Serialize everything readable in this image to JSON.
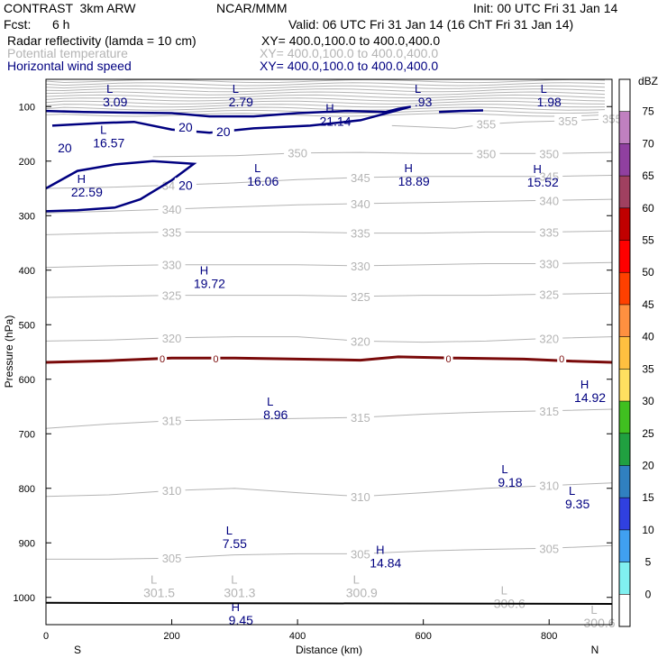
{
  "header": {
    "model": "CONTRAST  3km ARW",
    "org": "NCAR/MMM",
    "init": "Init: 00 UTC Fri 31 Jan 14",
    "fcst_label": "Fcst:",
    "fcst_value": "6 h",
    "valid": "Valid: 06 UTC Fri 31 Jan 14 (16 ChT Fri 31 Jan 14)",
    "fields": [
      {
        "name": "Radar reflectivity (lamda = 10 cm)",
        "xy": "XY= 400.0,100.0 to 400.0,400.0",
        "color": "#000000"
      },
      {
        "name": "Potential temperature",
        "xy": "XY= 400.0,100.0 to 400.0,400.0",
        "color": "#b4b4b4"
      },
      {
        "name": "Horizontal wind speed",
        "xy": "XY= 400.0,100.0 to 400.0,400.0",
        "color": "#000080"
      }
    ]
  },
  "chart_data": {
    "type": "contour",
    "xlabel": "Distance (km)",
    "ylabel": "Pressure (hPa)",
    "xlim": [
      0,
      900
    ],
    "ylim": [
      1050,
      50
    ],
    "x_ticks": [
      "0",
      "200",
      "400",
      "600",
      "800"
    ],
    "x_tick_values": [
      0,
      200,
      400,
      600,
      800
    ],
    "y_ticks": [
      "100",
      "200",
      "300",
      "400",
      "500",
      "600",
      "700",
      "800",
      "900",
      "1000"
    ],
    "y_tick_values": [
      100,
      200,
      300,
      400,
      500,
      600,
      700,
      800,
      900,
      1000
    ],
    "x_end_labels": {
      "left": "S",
      "right": "N"
    },
    "colorbar": {
      "unit": "dBZ",
      "levels": [
        "75",
        "70",
        "65",
        "60",
        "55",
        "50",
        "45",
        "40",
        "35",
        "30",
        "25",
        "20",
        "15",
        "10",
        "5",
        "0"
      ],
      "colors": [
        "#ffffff",
        "#c080c0",
        "#9040a0",
        "#a04060",
        "#c00000",
        "#ff0000",
        "#ff4000",
        "#ff9040",
        "#ffc040",
        "#ffe060",
        "#40c020",
        "#20a040",
        "#3080c0",
        "#3040e0",
        "#40a0f0",
        "#80f0f0",
        "#ffffff"
      ]
    },
    "theta_series": [
      {
        "label": "355",
        "points": [
          [
            550,
            135
          ],
          [
            650,
            140
          ],
          [
            700,
            132
          ],
          [
            760,
            128
          ],
          [
            830,
            126
          ],
          [
            900,
            122
          ]
        ]
      },
      {
        "label": "350",
        "points": [
          [
            170,
            192
          ],
          [
            300,
            190
          ],
          [
            400,
            185
          ],
          [
            500,
            184
          ],
          [
            600,
            186
          ],
          [
            700,
            186
          ],
          [
            800,
            186
          ],
          [
            900,
            184
          ]
        ]
      },
      {
        "label": "345",
        "points": [
          [
            0,
            250
          ],
          [
            100,
            248
          ],
          [
            200,
            244
          ],
          [
            300,
            240
          ],
          [
            400,
            234
          ],
          [
            500,
            230
          ],
          [
            600,
            228
          ],
          [
            700,
            228
          ],
          [
            800,
            228
          ],
          [
            900,
            226
          ]
        ]
      },
      {
        "label": "340",
        "points": [
          [
            0,
            295
          ],
          [
            100,
            292
          ],
          [
            200,
            288
          ],
          [
            300,
            284
          ],
          [
            400,
            280
          ],
          [
            500,
            278
          ],
          [
            600,
            276
          ],
          [
            700,
            274
          ],
          [
            800,
            272
          ],
          [
            900,
            270
          ]
        ]
      },
      {
        "label": "335",
        "points": [
          [
            0,
            335
          ],
          [
            100,
            332
          ],
          [
            200,
            330
          ],
          [
            300,
            330
          ],
          [
            400,
            330
          ],
          [
            500,
            332
          ],
          [
            600,
            332
          ],
          [
            700,
            330
          ],
          [
            800,
            330
          ],
          [
            900,
            328
          ]
        ]
      },
      {
        "label": "330",
        "points": [
          [
            0,
            395
          ],
          [
            100,
            392
          ],
          [
            200,
            390
          ],
          [
            300,
            390
          ],
          [
            400,
            390
          ],
          [
            500,
            392
          ],
          [
            600,
            390
          ],
          [
            700,
            388
          ],
          [
            800,
            388
          ],
          [
            900,
            386
          ]
        ]
      },
      {
        "label": "325",
        "points": [
          [
            0,
            450
          ],
          [
            100,
            448
          ],
          [
            200,
            446
          ],
          [
            300,
            446
          ],
          [
            400,
            446
          ],
          [
            500,
            448
          ],
          [
            600,
            446
          ],
          [
            700,
            446
          ],
          [
            800,
            444
          ],
          [
            900,
            442
          ]
        ]
      },
      {
        "label": "320",
        "points": [
          [
            0,
            530
          ],
          [
            100,
            528
          ],
          [
            200,
            524
          ],
          [
            300,
            522
          ],
          [
            400,
            522
          ],
          [
            500,
            530
          ],
          [
            600,
            532
          ],
          [
            700,
            530
          ],
          [
            800,
            525
          ],
          [
            900,
            522
          ]
        ]
      },
      {
        "label": "315",
        "points": [
          [
            0,
            690
          ],
          [
            100,
            682
          ],
          [
            200,
            676
          ],
          [
            300,
            674
          ],
          [
            400,
            672
          ],
          [
            500,
            670
          ],
          [
            600,
            664
          ],
          [
            700,
            660
          ],
          [
            800,
            658
          ],
          [
            900,
            655
          ]
        ]
      },
      {
        "label": "310",
        "points": [
          [
            0,
            815
          ],
          [
            100,
            812
          ],
          [
            200,
            804
          ],
          [
            300,
            800
          ],
          [
            400,
            808
          ],
          [
            500,
            815
          ],
          [
            600,
            808
          ],
          [
            700,
            800
          ],
          [
            800,
            795
          ],
          [
            900,
            790
          ]
        ]
      },
      {
        "label": "305",
        "points": [
          [
            0,
            930
          ],
          [
            100,
            930
          ],
          [
            200,
            928
          ],
          [
            300,
            922
          ],
          [
            400,
            920
          ],
          [
            500,
            920
          ],
          [
            600,
            915
          ],
          [
            700,
            912
          ],
          [
            800,
            910
          ],
          [
            900,
            905
          ]
        ]
      }
    ],
    "freezing_line": {
      "label": "0",
      "pressure": 565
    },
    "wind_speed_labels": [
      "20",
      "20",
      "20",
      "20"
    ],
    "extrema": [
      {
        "type": "L",
        "value": "3.09",
        "x": 110,
        "p": 75,
        "color": "navy"
      },
      {
        "type": "L",
        "value": "2.79",
        "x": 310,
        "p": 75,
        "color": "navy"
      },
      {
        "type": "L",
        "value": ".93",
        "x": 600,
        "p": 75,
        "color": "navy"
      },
      {
        "type": "L",
        "value": "1.98",
        "x": 800,
        "p": 75,
        "color": "navy"
      },
      {
        "type": "H",
        "value": "21.14",
        "x": 460,
        "p": 110,
        "color": "navy"
      },
      {
        "type": "L",
        "value": "16.57",
        "x": 100,
        "p": 150,
        "color": "navy"
      },
      {
        "type": "H",
        "value": "22.59",
        "x": 65,
        "p": 240,
        "color": "navy"
      },
      {
        "type": "L",
        "value": "16.06",
        "x": 345,
        "p": 220,
        "color": "navy"
      },
      {
        "type": "H",
        "value": "18.89",
        "x": 585,
        "p": 220,
        "color": "navy"
      },
      {
        "type": "H",
        "value": "15.52",
        "x": 790,
        "p": 222,
        "color": "navy"
      },
      {
        "type": "H",
        "value": "19.72",
        "x": 260,
        "p": 408,
        "color": "navy"
      },
      {
        "type": "H",
        "value": "14.92",
        "x": 865,
        "p": 617,
        "color": "navy"
      },
      {
        "type": "L",
        "value": "8.96",
        "x": 365,
        "p": 648,
        "color": "navy"
      },
      {
        "type": "L",
        "value": "9.18",
        "x": 738,
        "p": 772,
        "color": "navy"
      },
      {
        "type": "L",
        "value": "9.35",
        "x": 845,
        "p": 812,
        "color": "navy"
      },
      {
        "type": "L",
        "value": "7.55",
        "x": 300,
        "p": 885,
        "color": "navy"
      },
      {
        "type": "H",
        "value": "14.84",
        "x": 540,
        "p": 920,
        "color": "navy"
      },
      {
        "type": "H",
        "value": "9.45",
        "x": 310,
        "p": 1025,
        "color": "navy"
      },
      {
        "type": "L",
        "value": "301.5",
        "x": 180,
        "p": 975,
        "color": "gray"
      },
      {
        "type": "L",
        "value": "301.3",
        "x": 308,
        "p": 975,
        "color": "gray"
      },
      {
        "type": "L",
        "value": "300.9",
        "x": 502,
        "p": 975,
        "color": "gray"
      },
      {
        "type": "L",
        "value": "300.6",
        "x": 737,
        "p": 995,
        "color": "gray"
      },
      {
        "type": "L",
        "value": "300.6",
        "x": 880,
        "p": 1030,
        "color": "gray"
      }
    ]
  }
}
